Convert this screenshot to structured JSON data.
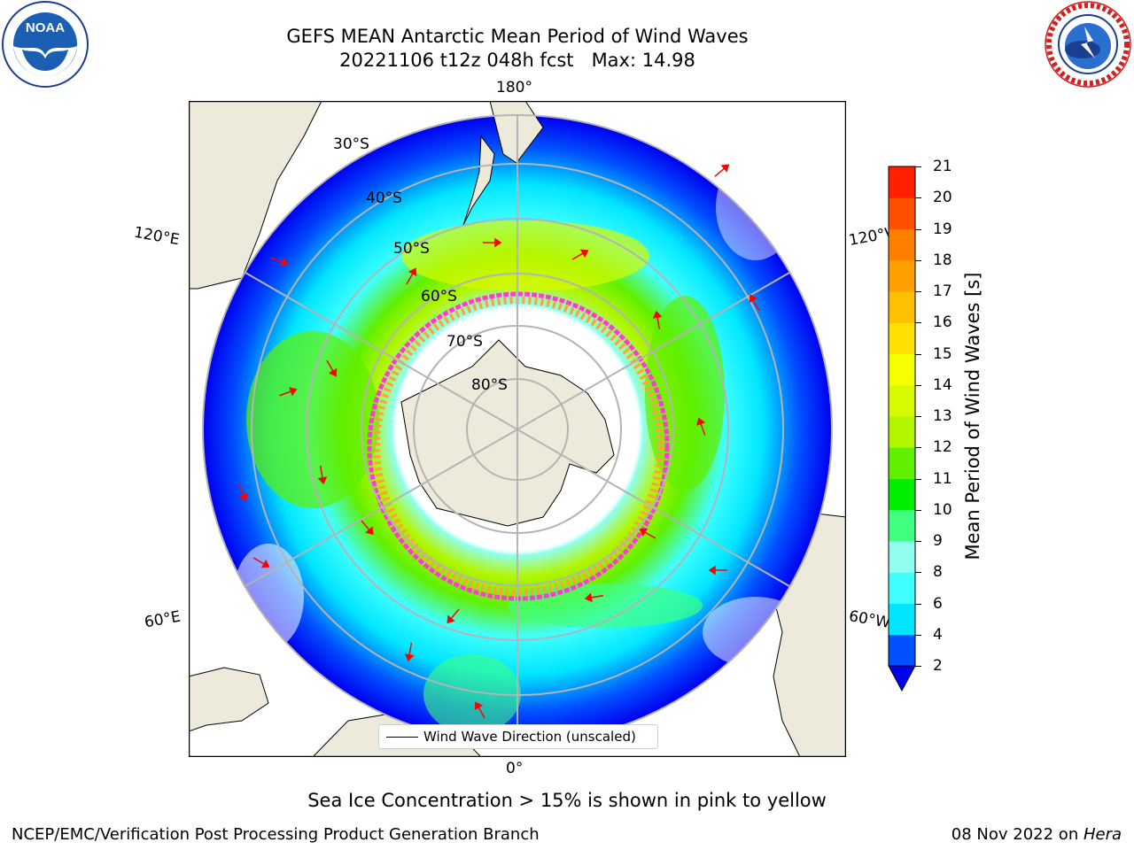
{
  "title": {
    "line1": "GEFS MEAN Antarctic Mean Period of Wind Waves",
    "line2": "20221106 t12z 048h fcst   Max: 14.98"
  },
  "logos": {
    "left": "noaa-logo",
    "left_text": "NOAA",
    "left_ring": "NATIONAL OCEANIC AND ATMOSPHERIC ADMINISTRATION · U.S. DEPARTMENT OF COMMERCE",
    "right": "national-weather-service-logo",
    "right_ring": "NATIONAL WEATHER SERVICE"
  },
  "map": {
    "projection": "south-polar-stereographic",
    "longitude_labels": {
      "top": "180°",
      "bottom": "0°",
      "upper_left": "120°E",
      "lower_left": "60°E",
      "upper_right": "120°W",
      "lower_right": "60°W"
    },
    "latitude_labels": [
      "30°S",
      "40°S",
      "50°S",
      "60°S",
      "70°S",
      "80°S"
    ],
    "legend_label": "Wind Wave Direction (unscaled)",
    "colors": {
      "land": "#eeeadb",
      "ocean_blank": "#ffffff",
      "grid": "#b4b4b4",
      "arrow": "#ff0000",
      "ice_edge": "#ff3ad9",
      "ice_inner": "#ffa040"
    }
  },
  "colorbar": {
    "label": "Mean Period of Wind Waves [s]",
    "ticks": [
      "2",
      "4",
      "6",
      "8",
      "9",
      "10",
      "11",
      "12",
      "13",
      "14",
      "15",
      "16",
      "17",
      "18",
      "19",
      "20",
      "21"
    ],
    "colors": [
      "#0050ff",
      "#00e6ff",
      "#40ffff",
      "#90fff0",
      "#40ff80",
      "#00ef00",
      "#60f000",
      "#b4f500",
      "#d8fa00",
      "#f5ff00",
      "#ffe000",
      "#ffc000",
      "#ffa000",
      "#ff8000",
      "#ff5000",
      "#ff2000"
    ],
    "under_color": "#0000f0"
  },
  "note": "Sea Ice Concentration > 15% is shown in pink to yellow",
  "footer": {
    "left": "NCEP/EMC/Verification Post Processing Product Generation Branch",
    "right_date": "08 Nov 2022 on ",
    "right_host": "Hera"
  }
}
